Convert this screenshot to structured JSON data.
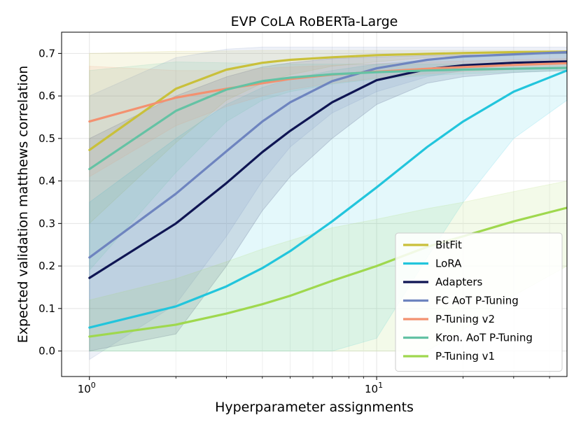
{
  "chart_data": {
    "type": "line",
    "title": "EVP CoLA RoBERTa-Large",
    "xlabel": "Hyperparameter assignments",
    "ylabel": "Expected validation matthews correlation",
    "xscale": "log",
    "xlim": [
      0.8,
      46
    ],
    "ylim": [
      -0.06,
      0.75
    ],
    "grid": true,
    "legend_position": "lower-right",
    "x_ticks": [
      {
        "value": 1,
        "base": "10",
        "exp": "0"
      },
      {
        "value": 10,
        "base": "10",
        "exp": "1"
      }
    ],
    "y_ticks": [
      {
        "value": 0.0,
        "label": "0.0"
      },
      {
        "value": 0.1,
        "label": "0.1"
      },
      {
        "value": 0.2,
        "label": "0.2"
      },
      {
        "value": 0.3,
        "label": "0.3"
      },
      {
        "value": 0.4,
        "label": "0.4"
      },
      {
        "value": 0.5,
        "label": "0.5"
      },
      {
        "value": 0.6,
        "label": "0.6"
      },
      {
        "value": 0.7,
        "label": "0.7"
      }
    ],
    "series": [
      {
        "name": "BitFit",
        "color": "#c9c03a",
        "x": [
          1,
          2,
          3,
          4,
          5,
          7,
          10,
          15,
          20,
          30,
          46
        ],
        "y": [
          0.473,
          0.617,
          0.662,
          0.678,
          0.685,
          0.691,
          0.696,
          0.699,
          0.701,
          0.703,
          0.704
        ],
        "lower": [
          0.3,
          0.49,
          0.59,
          0.63,
          0.65,
          0.67,
          0.68,
          0.69,
          0.695,
          0.698,
          0.7
        ],
        "upper": [
          0.7,
          0.705,
          0.706,
          0.707,
          0.707,
          0.707,
          0.707,
          0.707,
          0.707,
          0.707,
          0.707
        ]
      },
      {
        "name": "LoRA",
        "color": "#22c5dc",
        "x": [
          1,
          2,
          3,
          4,
          5,
          7,
          10,
          15,
          20,
          30,
          46
        ],
        "y": [
          0.055,
          0.105,
          0.152,
          0.195,
          0.235,
          0.305,
          0.385,
          0.48,
          0.54,
          0.61,
          0.66
        ],
        "lower": [
          0,
          0,
          0,
          0,
          0,
          0,
          0.03,
          0.22,
          0.35,
          0.5,
          0.59
        ],
        "upper": [
          0.35,
          0.5,
          0.58,
          0.62,
          0.64,
          0.66,
          0.675,
          0.685,
          0.69,
          0.695,
          0.7
        ]
      },
      {
        "name": "Adapters",
        "color": "#0f1553",
        "x": [
          1,
          2,
          3,
          4,
          5,
          7,
          10,
          15,
          20,
          30,
          46
        ],
        "y": [
          0.172,
          0.3,
          0.395,
          0.468,
          0.518,
          0.585,
          0.637,
          0.663,
          0.672,
          0.678,
          0.681
        ],
        "lower": [
          0,
          0.04,
          0.2,
          0.33,
          0.41,
          0.5,
          0.58,
          0.63,
          0.645,
          0.655,
          0.66
        ],
        "upper": [
          0.5,
          0.6,
          0.645,
          0.668,
          0.678,
          0.688,
          0.692,
          0.695,
          0.697,
          0.698,
          0.7
        ]
      },
      {
        "name": "FC AoT P-Tuning",
        "color": "#6e84bf",
        "x": [
          1,
          2,
          3,
          4,
          5,
          7,
          10,
          15,
          20,
          30,
          46
        ],
        "y": [
          0.22,
          0.37,
          0.47,
          0.54,
          0.585,
          0.635,
          0.665,
          0.685,
          0.693,
          0.698,
          0.703
        ],
        "lower": [
          -0.02,
          0.11,
          0.27,
          0.4,
          0.48,
          0.56,
          0.61,
          0.645,
          0.66,
          0.675,
          0.685
        ],
        "upper": [
          0.6,
          0.69,
          0.71,
          0.715,
          0.715,
          0.715,
          0.715,
          0.715,
          0.715,
          0.715,
          0.715
        ]
      },
      {
        "name": "P-Tuning v2",
        "color": "#f39170",
        "x": [
          1,
          2,
          3,
          4,
          5,
          7,
          10,
          15,
          20,
          30,
          46
        ],
        "y": [
          0.54,
          0.596,
          0.617,
          0.63,
          0.64,
          0.65,
          0.657,
          0.664,
          0.668,
          0.673,
          0.677
        ],
        "lower": [
          0.41,
          0.53,
          0.575,
          0.6,
          0.615,
          0.63,
          0.642,
          0.652,
          0.657,
          0.662,
          0.668
        ],
        "upper": [
          0.67,
          0.66,
          0.66,
          0.665,
          0.668,
          0.672,
          0.676,
          0.68,
          0.682,
          0.685,
          0.688
        ]
      },
      {
        "name": "Kron. AoT P-Tuning",
        "color": "#64c2a4",
        "x": [
          1,
          2,
          3,
          4,
          5,
          7,
          10,
          15,
          20,
          30,
          46
        ],
        "y": [
          0.428,
          0.565,
          0.615,
          0.635,
          0.643,
          0.651,
          0.656,
          0.66,
          0.662,
          0.664,
          0.666
        ],
        "lower": [
          0.19,
          0.42,
          0.54,
          0.59,
          0.61,
          0.628,
          0.64,
          0.648,
          0.652,
          0.656,
          0.66
        ],
        "upper": [
          0.66,
          0.68,
          0.678,
          0.676,
          0.675,
          0.675,
          0.675,
          0.675,
          0.675,
          0.675,
          0.675
        ]
      },
      {
        "name": "P-Tuning v1",
        "color": "#9fd84e",
        "x": [
          1,
          2,
          3,
          4,
          5,
          7,
          10,
          15,
          20,
          30,
          46
        ],
        "y": [
          0.034,
          0.062,
          0.088,
          0.11,
          0.13,
          0.165,
          0.2,
          0.245,
          0.27,
          0.305,
          0.337
        ],
        "lower": [
          0,
          0,
          0,
          0,
          0,
          0,
          0,
          0,
          0.05,
          0.13,
          0.2
        ],
        "upper": [
          0.12,
          0.17,
          0.21,
          0.24,
          0.26,
          0.29,
          0.31,
          0.335,
          0.35,
          0.375,
          0.4
        ]
      }
    ]
  }
}
